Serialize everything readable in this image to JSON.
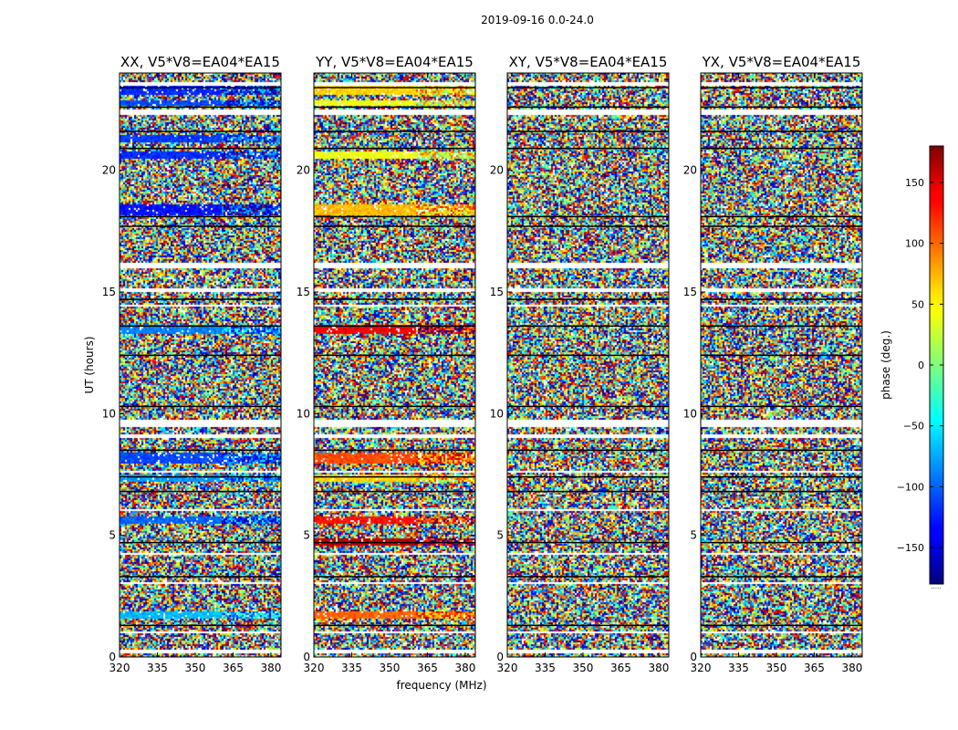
{
  "figure_title": "2019-09-16 0.0-24.0",
  "chart_data": {
    "type": "heatmap",
    "title": "2019-09-16 0.0-24.0",
    "xlabel": "frequency (MHz)",
    "ylabel": "UT (hours)",
    "xlim": [
      320,
      384
    ],
    "ylim": [
      0,
      24
    ],
    "xticks": [
      320,
      335,
      350,
      365,
      380
    ],
    "yticks": [
      0,
      5,
      10,
      15,
      20
    ],
    "panels": [
      {
        "title": "XX, V5*V8=EA04*EA15",
        "pol": "XX",
        "coherent_bands_ut": [
          [
            23.1,
            23.5,
            -120
          ],
          [
            22.7,
            22.9,
            -110
          ],
          [
            21.2,
            21.5,
            -115
          ],
          [
            20.5,
            20.8,
            -120
          ],
          [
            18.2,
            18.6,
            -130
          ],
          [
            13.3,
            13.7,
            -90
          ],
          [
            8.0,
            8.4,
            -110
          ],
          [
            7.2,
            7.5,
            -80
          ],
          [
            5.5,
            5.8,
            -100
          ],
          [
            1.6,
            1.9,
            -70
          ]
        ]
      },
      {
        "title": "YY, V5*V8=EA04*EA15",
        "pol": "YY",
        "coherent_bands_ut": [
          [
            23.1,
            23.5,
            60
          ],
          [
            22.7,
            22.9,
            40
          ],
          [
            20.5,
            20.8,
            40
          ],
          [
            18.2,
            18.6,
            70
          ],
          [
            13.3,
            13.7,
            140
          ],
          [
            8.0,
            8.4,
            110
          ],
          [
            7.2,
            7.5,
            60
          ],
          [
            5.5,
            5.8,
            130
          ],
          [
            4.6,
            4.9,
            160
          ],
          [
            1.6,
            1.9,
            100
          ]
        ]
      },
      {
        "title": "XY, V5*V8=EA04*EA15",
        "pol": "XY",
        "coherent_bands_ut": []
      },
      {
        "title": "YX, V5*V8=EA04*EA15",
        "pol": "YX",
        "coherent_bands_ut": []
      }
    ],
    "flagged_ut": [
      [
        23.5,
        23.65
      ],
      [
        22.3,
        22.5
      ],
      [
        16.0,
        16.2
      ],
      [
        15.0,
        15.2
      ],
      [
        14.4,
        14.5
      ],
      [
        9.5,
        9.8
      ],
      [
        9.0,
        9.2
      ],
      [
        7.6,
        7.7
      ],
      [
        6.0,
        6.1
      ],
      [
        4.2,
        4.3
      ],
      [
        3.0,
        3.1
      ],
      [
        1.0,
        1.1
      ],
      [
        0.2,
        0.3
      ]
    ],
    "black_lines_ut": [
      23.4,
      22.6,
      21.6,
      20.9,
      18.1,
      17.7,
      14.7,
      13.6,
      12.4,
      10.3,
      8.5,
      7.4,
      6.8,
      4.7,
      3.3,
      1.3
    ],
    "colorbar": {
      "label": "phase (deg.)",
      "range": [
        -180,
        180
      ],
      "ticks": [
        -150,
        -100,
        -50,
        0,
        50,
        100,
        150
      ],
      "tick_labels": [
        "−150",
        "−100",
        "−50",
        "0",
        "50",
        "100",
        "150"
      ],
      "colormap": "jet",
      "underflow_label": "·····"
    }
  }
}
